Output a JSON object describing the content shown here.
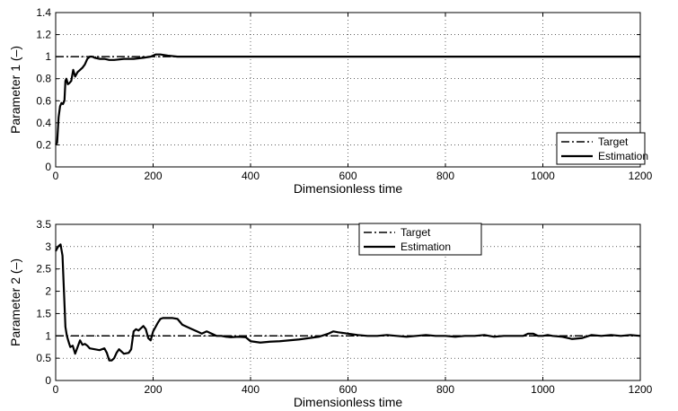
{
  "chart_data": [
    {
      "type": "line",
      "title": "",
      "xlabel": "Dimensionless time",
      "ylabel": "Parameter 1 (–)",
      "xlim": [
        0,
        1200
      ],
      "ylim": [
        0,
        1.4
      ],
      "xticks": [
        "0",
        "200",
        "400",
        "600",
        "800",
        "1000",
        "1200"
      ],
      "yticks": [
        "0",
        "0.2",
        "0.4",
        "0.6",
        "0.8",
        "1",
        "1.2",
        "1.4"
      ],
      "grid": true,
      "legend_position": "bottom-right",
      "series": [
        {
          "name": "Target",
          "style": "dash-dot",
          "x": [
            0,
            1200
          ],
          "y": [
            1,
            1
          ]
        },
        {
          "name": "Estimation",
          "style": "solid",
          "x": [
            0,
            3,
            6,
            9,
            12,
            15,
            18,
            20,
            22,
            25,
            28,
            32,
            36,
            40,
            45,
            50,
            55,
            60,
            65,
            70,
            75,
            80,
            90,
            100,
            110,
            120,
            140,
            160,
            180,
            195,
            205,
            215,
            230,
            250,
            300,
            400,
            500,
            600,
            700,
            800,
            900,
            1000,
            1100,
            1200
          ],
          "y": [
            0.2,
            0.22,
            0.45,
            0.55,
            0.58,
            0.57,
            0.6,
            0.78,
            0.8,
            0.75,
            0.76,
            0.78,
            0.88,
            0.82,
            0.86,
            0.88,
            0.9,
            0.93,
            0.98,
            1.0,
            1.0,
            0.99,
            0.98,
            0.98,
            0.97,
            0.97,
            0.98,
            0.98,
            0.99,
            1.0,
            1.02,
            1.02,
            1.01,
            1.0,
            1.0,
            1.0,
            1.0,
            1.0,
            1.0,
            1.0,
            1.0,
            1.0,
            1.0,
            1.0
          ]
        }
      ]
    },
    {
      "type": "line",
      "title": "",
      "xlabel": "Dimensionless time",
      "ylabel": "Parameter 2 (–)",
      "xlim": [
        0,
        1200
      ],
      "ylim": [
        0,
        3.5
      ],
      "xticks": [
        "0",
        "200",
        "400",
        "600",
        "800",
        "1000",
        "1200"
      ],
      "yticks": [
        "0",
        "0.5",
        "1",
        "1.5",
        "2",
        "2.5",
        "3",
        "3.5"
      ],
      "grid": true,
      "legend_position": "top-center",
      "series": [
        {
          "name": "Target",
          "style": "dash-dot",
          "x": [
            0,
            1200
          ],
          "y": [
            1,
            1
          ]
        },
        {
          "name": "Estimation",
          "style": "solid",
          "x": [
            0,
            5,
            10,
            14,
            17,
            20,
            23,
            27,
            30,
            35,
            40,
            45,
            50,
            55,
            60,
            65,
            70,
            80,
            90,
            100,
            105,
            110,
            115,
            120,
            125,
            130,
            140,
            150,
            155,
            160,
            165,
            170,
            180,
            185,
            190,
            195,
            200,
            205,
            210,
            215,
            220,
            230,
            240,
            250,
            260,
            270,
            280,
            290,
            300,
            310,
            320,
            330,
            340,
            350,
            360,
            375,
            390,
            400,
            420,
            440,
            460,
            480,
            500,
            520,
            540,
            560,
            570,
            580,
            600,
            620,
            640,
            660,
            680,
            700,
            720,
            740,
            760,
            780,
            800,
            820,
            840,
            860,
            880,
            900,
            920,
            940,
            960,
            970,
            980,
            990,
            1000,
            1010,
            1020,
            1040,
            1060,
            1080,
            1100,
            1120,
            1140,
            1160,
            1180,
            1200
          ],
          "y": [
            2.9,
            3.0,
            3.05,
            2.8,
            2.0,
            1.2,
            1.0,
            0.85,
            0.75,
            0.78,
            0.6,
            0.75,
            0.9,
            0.8,
            0.82,
            0.78,
            0.72,
            0.7,
            0.68,
            0.72,
            0.62,
            0.45,
            0.45,
            0.5,
            0.62,
            0.7,
            0.6,
            0.62,
            0.7,
            1.1,
            1.15,
            1.12,
            1.22,
            1.15,
            0.95,
            0.9,
            1.1,
            1.2,
            1.3,
            1.38,
            1.4,
            1.4,
            1.4,
            1.38,
            1.25,
            1.2,
            1.15,
            1.1,
            1.05,
            1.1,
            1.05,
            1.0,
            1.0,
            0.98,
            0.97,
            0.98,
            0.97,
            0.88,
            0.85,
            0.87,
            0.88,
            0.9,
            0.92,
            0.95,
            0.98,
            1.05,
            1.1,
            1.08,
            1.05,
            1.02,
            1.0,
            1.0,
            1.02,
            1.0,
            0.98,
            1.0,
            1.02,
            1.0,
            1.0,
            0.98,
            1.0,
            1.0,
            1.02,
            0.98,
            1.0,
            1.0,
            1.0,
            1.05,
            1.05,
            1.0,
            1.0,
            1.02,
            1.0,
            0.98,
            0.93,
            0.95,
            1.02,
            1.0,
            1.02,
            1.0,
            1.02,
            1.0
          ]
        }
      ]
    }
  ]
}
